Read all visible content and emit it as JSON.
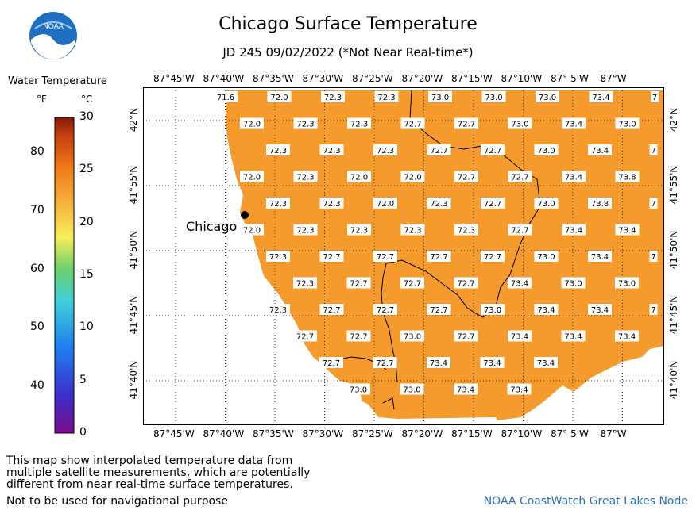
{
  "title": "Chicago Surface Temperature",
  "subtitle": "JD 245 09/02/2022 (*Not Near Real-time*)",
  "logo_text": "NOAA",
  "legend": {
    "title": "Water Temperature",
    "unit_f": "°F",
    "unit_c": "°C",
    "f_ticks": [
      "80",
      "70",
      "60",
      "50",
      "40"
    ],
    "f_values": [
      80,
      70,
      60,
      50,
      40
    ],
    "c_ticks": [
      "30",
      "25",
      "20",
      "15",
      "10",
      "5",
      "0"
    ],
    "c_values": [
      30,
      25,
      20,
      15,
      10,
      5,
      0
    ],
    "c_range": [
      0,
      30
    ]
  },
  "map": {
    "lon_labels": [
      "87°45'W",
      "87°40'W",
      "87°35'W",
      "87°30'W",
      "87°25'W",
      "87°20'W",
      "87°15'W",
      "87°10'W",
      "87° 5'W",
      "87°W"
    ],
    "lat_labels": [
      "42°N",
      "41°55'N",
      "41°50'N",
      "41°45'N",
      "41°40'N"
    ],
    "city": "Chicago",
    "water_color": "#f59a2d",
    "temperature_rows": [
      [
        "71.6",
        "72.0",
        "72.3",
        "72.3",
        "73.0",
        "73.0",
        "73.0",
        "73.4",
        "7"
      ],
      [
        "72.0",
        "72.3",
        "72.3",
        "72.7",
        "72.7",
        "73.0",
        "73.4",
        "73.0"
      ],
      [
        "72.3",
        "72.3",
        "72.3",
        "72.7",
        "72.7",
        "73.0",
        "73.4",
        "7"
      ],
      [
        "72.0",
        "72.3",
        "72.0",
        "72.0",
        "72.7",
        "72.7",
        "73.4",
        "73.8"
      ],
      [
        "72.3",
        "72.3",
        "72.0",
        "72.3",
        "72.7",
        "73.0",
        "73.8",
        "7"
      ],
      [
        "72.0",
        "72.3",
        "72.3",
        "72.3",
        "72.3",
        "72.7",
        "73.4",
        "73.4"
      ],
      [
        "72.3",
        "72.7",
        "72.7",
        "72.7",
        "72.7",
        "73.0",
        "73.4",
        "7"
      ],
      [
        "72.3",
        "72.7",
        "72.7",
        "72.7",
        "73.4",
        "73.0",
        "73.0"
      ],
      [
        "72.3",
        "72.7",
        "72.7",
        "72.7",
        "73.0",
        "73.4",
        "73.4",
        "7"
      ],
      [
        "72.7",
        "72.7",
        "73.0",
        "72.7",
        "73.4",
        "73.4",
        "73.4"
      ],
      [
        "72.7",
        "72.7",
        "73.4",
        "73.4",
        "73.4"
      ],
      [
        "73.0",
        "73.0",
        "73.4",
        "73.4"
      ]
    ]
  },
  "footnote_lines": [
    "This map show interpolated temperature data from",
    "multiple satellite measurements, which are potentially",
    "different from near real-time surface temperatures."
  ],
  "nav_note": "Not to be used for navigational purpose",
  "credit": "NOAA CoastWatch Great Lakes Node"
}
